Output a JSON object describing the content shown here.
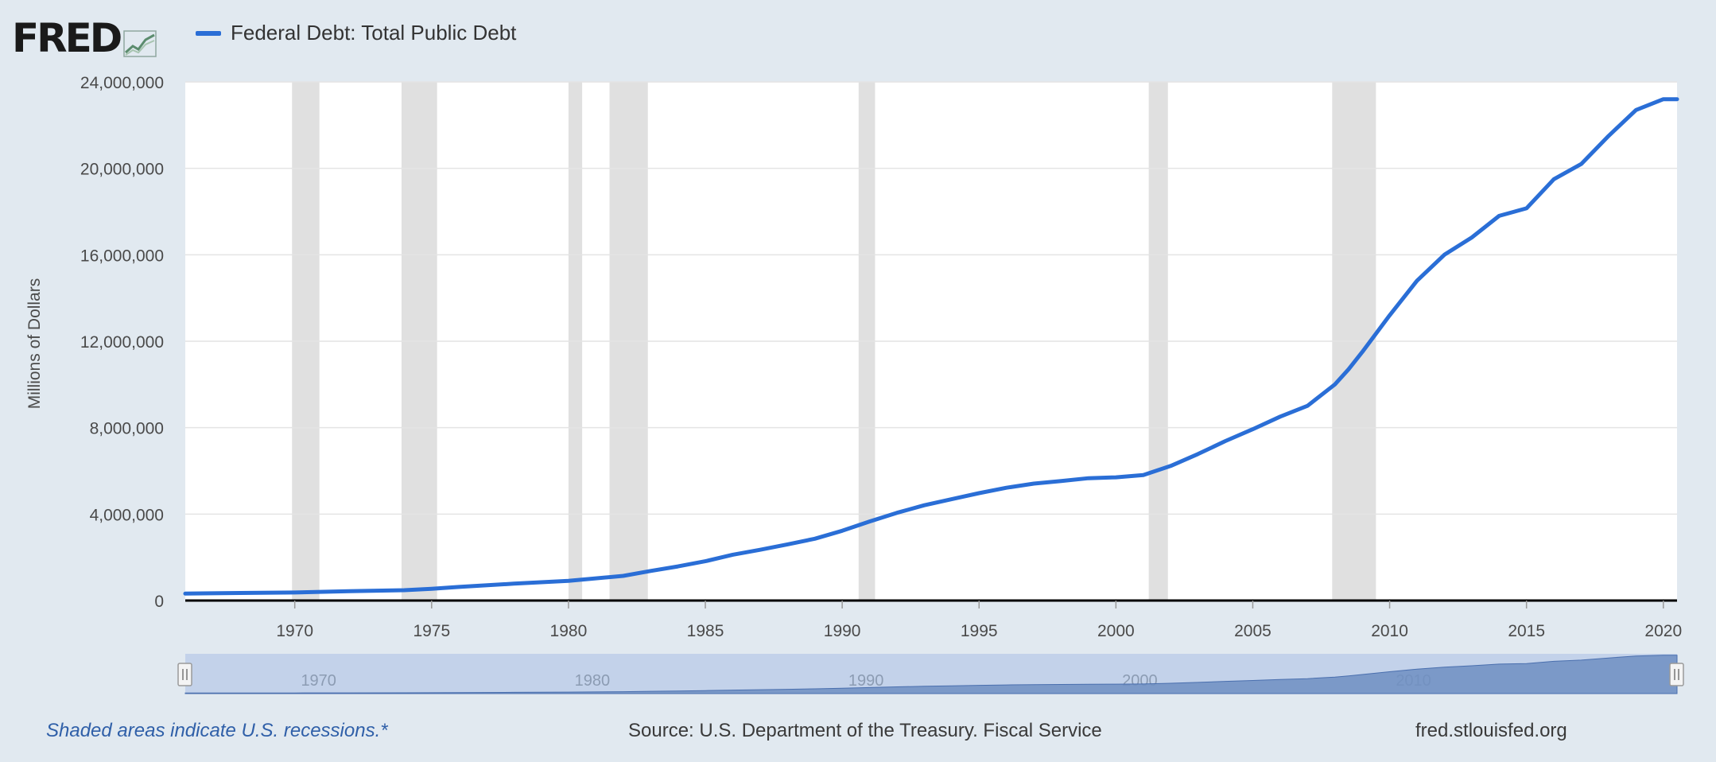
{
  "brand": {
    "logo_text": "FRED"
  },
  "legend": {
    "label": "Federal Debt: Total Public Debt"
  },
  "footer": {
    "recession_note": "Shaded areas indicate U.S. recessions.*",
    "source": "Source: U.S. Department of the Treasury. Fiscal Service",
    "site": "fred.stlouisfed.org"
  },
  "colors": {
    "line": "#2a6ed6",
    "recession": "#e0e0e0",
    "background": "#e1e9f0",
    "navigator_fill": "#6f8fc2"
  },
  "chart_data": {
    "type": "line",
    "title": "",
    "ylabel": "Millions of Dollars",
    "xlabel": "",
    "xlim": [
      1966.0,
      2020.5
    ],
    "ylim": [
      0,
      24000000
    ],
    "grid": true,
    "legend_position": "top-left",
    "y_ticks": [
      0,
      4000000,
      8000000,
      12000000,
      16000000,
      20000000,
      24000000
    ],
    "y_tick_labels": [
      "0",
      "4,000,000",
      "8,000,000",
      "12,000,000",
      "16,000,000",
      "20,000,000",
      "24,000,000"
    ],
    "x_ticks": [
      1970,
      1975,
      1980,
      1985,
      1990,
      1995,
      2000,
      2005,
      2010,
      2015,
      2020
    ],
    "x_tick_labels": [
      "1970",
      "1975",
      "1980",
      "1985",
      "1990",
      "1995",
      "2000",
      "2005",
      "2010",
      "2015",
      "2020"
    ],
    "navigator_tick_labels": [
      "1970",
      "1980",
      "1990",
      "2000",
      "2010"
    ],
    "recessions": [
      [
        1969.9,
        1970.9
      ],
      [
        1973.9,
        1975.2
      ],
      [
        1980.0,
        1980.5
      ],
      [
        1981.5,
        1982.9
      ],
      [
        1990.6,
        1991.2
      ],
      [
        2001.2,
        2001.9
      ],
      [
        2007.9,
        2009.5
      ]
    ],
    "series": [
      {
        "name": "Federal Debt: Total Public Debt",
        "x": [
          1966.0,
          1968,
          1970,
          1972,
          1974,
          1975,
          1976,
          1978,
          1980,
          1982,
          1983,
          1984,
          1985,
          1986,
          1987,
          1988,
          1989,
          1990,
          1991,
          1992,
          1993,
          1994,
          1995,
          1996,
          1997,
          1998,
          1999,
          2000,
          2001,
          2002,
          2003,
          2004,
          2005,
          2006,
          2007,
          2008,
          2008.5,
          2009,
          2010,
          2011,
          2012,
          2013,
          2014,
          2015,
          2016,
          2017,
          2018,
          2019,
          2020,
          2020.5
        ],
        "values": [
          320000,
          350000,
          370000,
          430000,
          480000,
          540000,
          630000,
          780000,
          910000,
          1140000,
          1370000,
          1580000,
          1820000,
          2120000,
          2350000,
          2600000,
          2860000,
          3230000,
          3660000,
          4060000,
          4410000,
          4690000,
          4970000,
          5220000,
          5410000,
          5530000,
          5660000,
          5700000,
          5810000,
          6230000,
          6780000,
          7380000,
          7930000,
          8510000,
          9010000,
          10000000,
          10700000,
          11500000,
          13200000,
          14800000,
          16000000,
          16800000,
          17800000,
          18150000,
          19500000,
          20200000,
          21500000,
          22700000,
          23200000,
          23200000
        ]
      }
    ]
  }
}
